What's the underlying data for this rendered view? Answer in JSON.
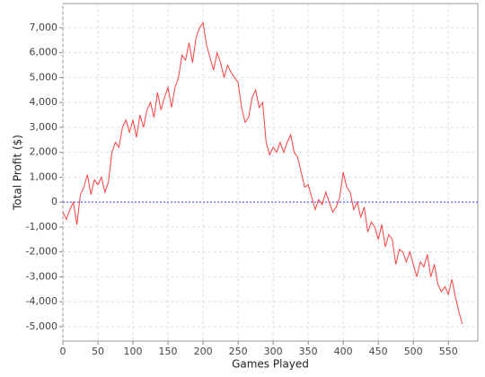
{
  "chart_data": {
    "type": "line",
    "x_label": "Games Played",
    "y_label": "Total Profit ($)",
    "x": [
      0,
      5,
      10,
      15,
      20,
      25,
      30,
      35,
      40,
      45,
      50,
      55,
      60,
      65,
      70,
      75,
      80,
      85,
      90,
      95,
      100,
      105,
      110,
      115,
      120,
      125,
      130,
      135,
      140,
      145,
      150,
      155,
      160,
      165,
      170,
      175,
      180,
      185,
      190,
      195,
      200,
      205,
      210,
      215,
      220,
      225,
      230,
      235,
      240,
      245,
      250,
      255,
      260,
      265,
      270,
      275,
      280,
      285,
      290,
      295,
      300,
      305,
      310,
      315,
      320,
      325,
      330,
      335,
      340,
      345,
      350,
      355,
      360,
      365,
      370,
      375,
      380,
      385,
      390,
      395,
      400,
      405,
      410,
      415,
      420,
      425,
      430,
      435,
      440,
      445,
      450,
      455,
      460,
      465,
      470,
      475,
      480,
      485,
      490,
      495,
      500,
      505,
      510,
      515,
      520,
      525,
      530,
      535,
      540,
      545,
      550,
      555,
      560,
      565,
      570
    ],
    "series": [
      {
        "color": "#ff4040",
        "values": [
          -400,
          -700,
          -300,
          0,
          -900,
          300,
          600,
          1100,
          300,
          900,
          700,
          1000,
          400,
          800,
          2000,
          2400,
          2200,
          3000,
          3300,
          2800,
          3300,
          2600,
          3500,
          3000,
          3700,
          4000,
          3400,
          4400,
          3700,
          4200,
          4600,
          3800,
          4600,
          5000,
          5900,
          5700,
          6400,
          5600,
          6600,
          7000,
          7200,
          6300,
          5800,
          5300,
          6000,
          5600,
          5000,
          5500,
          5200,
          5000,
          4800,
          3800,
          3200,
          3400,
          4200,
          4500,
          3800,
          4000,
          2400,
          1900,
          2200,
          2000,
          2400,
          2000,
          2400,
          2700,
          2000,
          1800,
          1200,
          600,
          700,
          200,
          -300,
          100,
          -100,
          400,
          0,
          -400,
          -200,
          200,
          1200,
          600,
          400,
          -300,
          0,
          -600,
          -200,
          -1200,
          -800,
          -1000,
          -1500,
          -900,
          -1800,
          -1300,
          -1500,
          -2500,
          -1900,
          -2000,
          -2400,
          -2000,
          -2500,
          -3000,
          -2400,
          -2600,
          -2100,
          -3000,
          -2500,
          -3300,
          -3600,
          -3400,
          -3700,
          -3100,
          -3800,
          -4400,
          -4900
        ]
      }
    ],
    "xlim": [
      0,
      592
    ],
    "ylim": [
      -5580,
      7970
    ],
    "xticks": [
      0,
      50,
      100,
      150,
      200,
      250,
      300,
      350,
      400,
      450,
      500,
      550
    ],
    "yticks": [
      {
        "value": -5000,
        "label": "-5,000"
      },
      {
        "value": -4000,
        "label": "-4,000"
      },
      {
        "value": -3000,
        "label": "-3,000"
      },
      {
        "value": -2000,
        "label": "-2,000"
      },
      {
        "value": -1000,
        "label": "-1,000"
      },
      0,
      {
        "value": 1000,
        "label": "1,000"
      },
      {
        "value": 2000,
        "label": "2,000"
      },
      {
        "value": 3000,
        "label": "3,000"
      },
      {
        "value": 4000,
        "label": "4,000"
      },
      {
        "value": 5000,
        "label": "5,000"
      },
      {
        "value": 6000,
        "label": "6,000"
      },
      {
        "value": 7000,
        "label": "7,000"
      }
    ],
    "grid": true,
    "zero_line_color": "#4040ff"
  }
}
